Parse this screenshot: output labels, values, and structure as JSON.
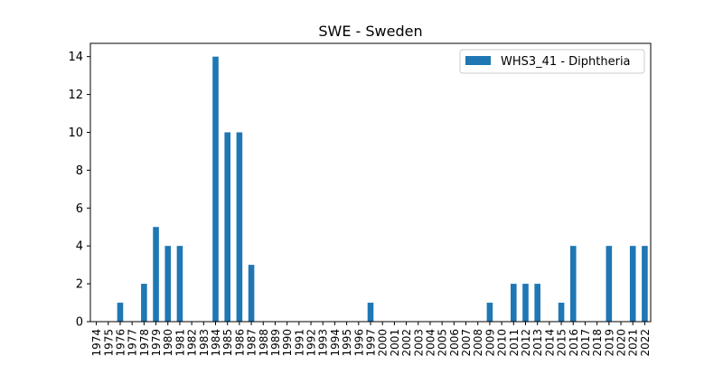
{
  "chart_data": {
    "type": "bar",
    "title": "SWE - Sweden",
    "xlabel": "",
    "ylabel": "",
    "ylim": [
      0,
      14.7
    ],
    "yticks": [
      0,
      2,
      4,
      6,
      8,
      10,
      12,
      14
    ],
    "legend_position": "top-right",
    "grid": false,
    "categories": [
      "1974",
      "1975",
      "1976",
      "1977",
      "1978",
      "1979",
      "1980",
      "1981",
      "1982",
      "1983",
      "1984",
      "1985",
      "1986",
      "1987",
      "1988",
      "1989",
      "1990",
      "1991",
      "1992",
      "1993",
      "1994",
      "1995",
      "1996",
      "1997",
      "2000",
      "2001",
      "2002",
      "2003",
      "2004",
      "2005",
      "2006",
      "2007",
      "2008",
      "2009",
      "2010",
      "2011",
      "2012",
      "2013",
      "2014",
      "2015",
      "2016",
      "2017",
      "2018",
      "2019",
      "2020",
      "2021",
      "2022"
    ],
    "series": [
      {
        "name": "WHS3_41 - Diphtheria",
        "color": "#1f77b4",
        "values": [
          0,
          0,
          1,
          0,
          2,
          5,
          4,
          4,
          0,
          0,
          14,
          10,
          10,
          3,
          0,
          0,
          0,
          0,
          0,
          0,
          0,
          0,
          0,
          1,
          0,
          0,
          0,
          0,
          0,
          0,
          0,
          0,
          0,
          1,
          0,
          2,
          2,
          2,
          0,
          1,
          4,
          0,
          0,
          4,
          0,
          4,
          4
        ]
      }
    ]
  }
}
